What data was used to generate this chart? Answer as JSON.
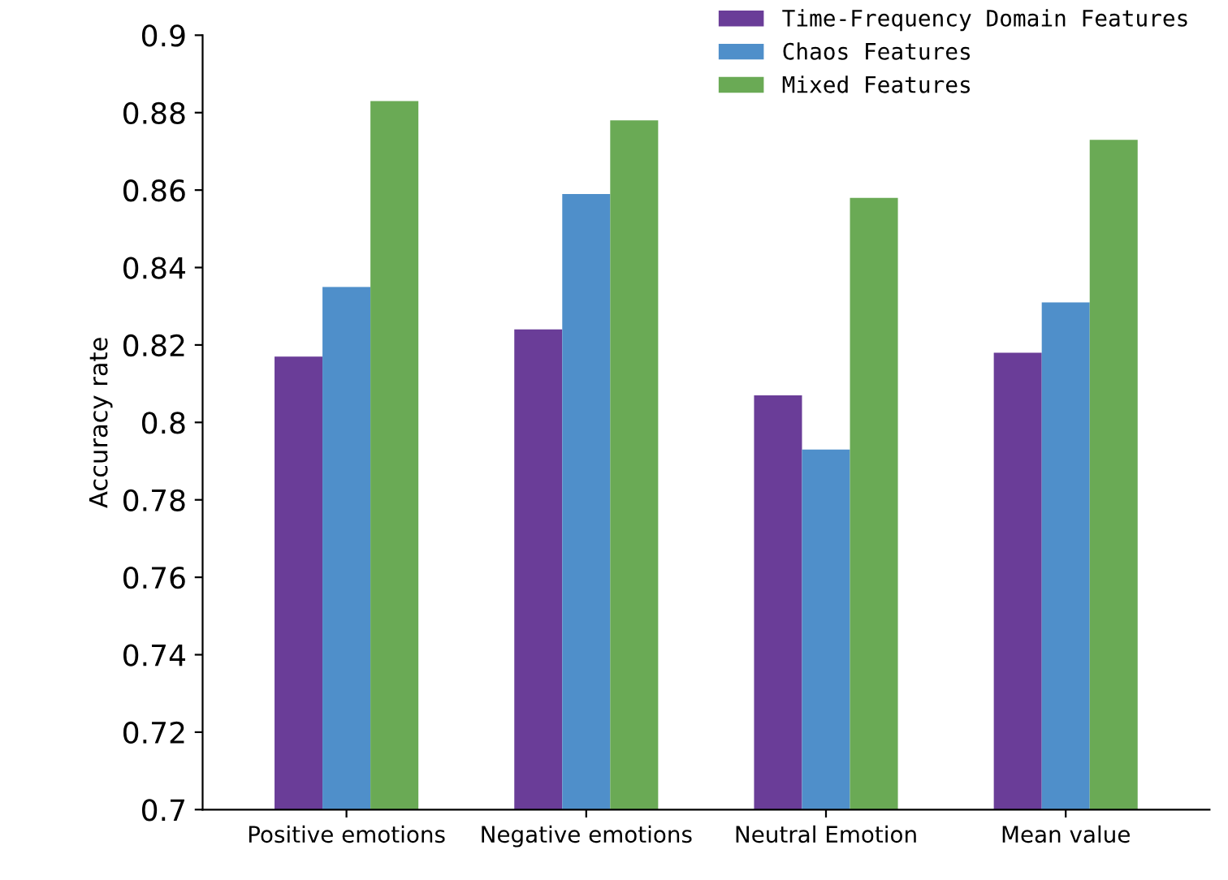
{
  "chart_data": {
    "type": "bar",
    "ylabel": "Accuracy rate",
    "categories": [
      "Positive emotions",
      "Negative emotions",
      "Neutral Emotion",
      "Mean value"
    ],
    "series": [
      {
        "name": "Time-Frequency Domain Features",
        "color": "#6a3d98",
        "values": [
          0.817,
          0.824,
          0.807,
          0.818
        ]
      },
      {
        "name": "Chaos Features",
        "color": "#4f8fca",
        "values": [
          0.835,
          0.859,
          0.793,
          0.831
        ]
      },
      {
        "name": "Mixed Features",
        "color": "#6aaa55",
        "values": [
          0.883,
          0.878,
          0.858,
          0.873
        ]
      }
    ],
    "ylim": [
      0.7,
      0.9
    ],
    "yticks": [
      0.7,
      0.72,
      0.74,
      0.76,
      0.78,
      0.8,
      0.82,
      0.84,
      0.86,
      0.88,
      0.9
    ],
    "legend": "top right",
    "grid": false
  }
}
